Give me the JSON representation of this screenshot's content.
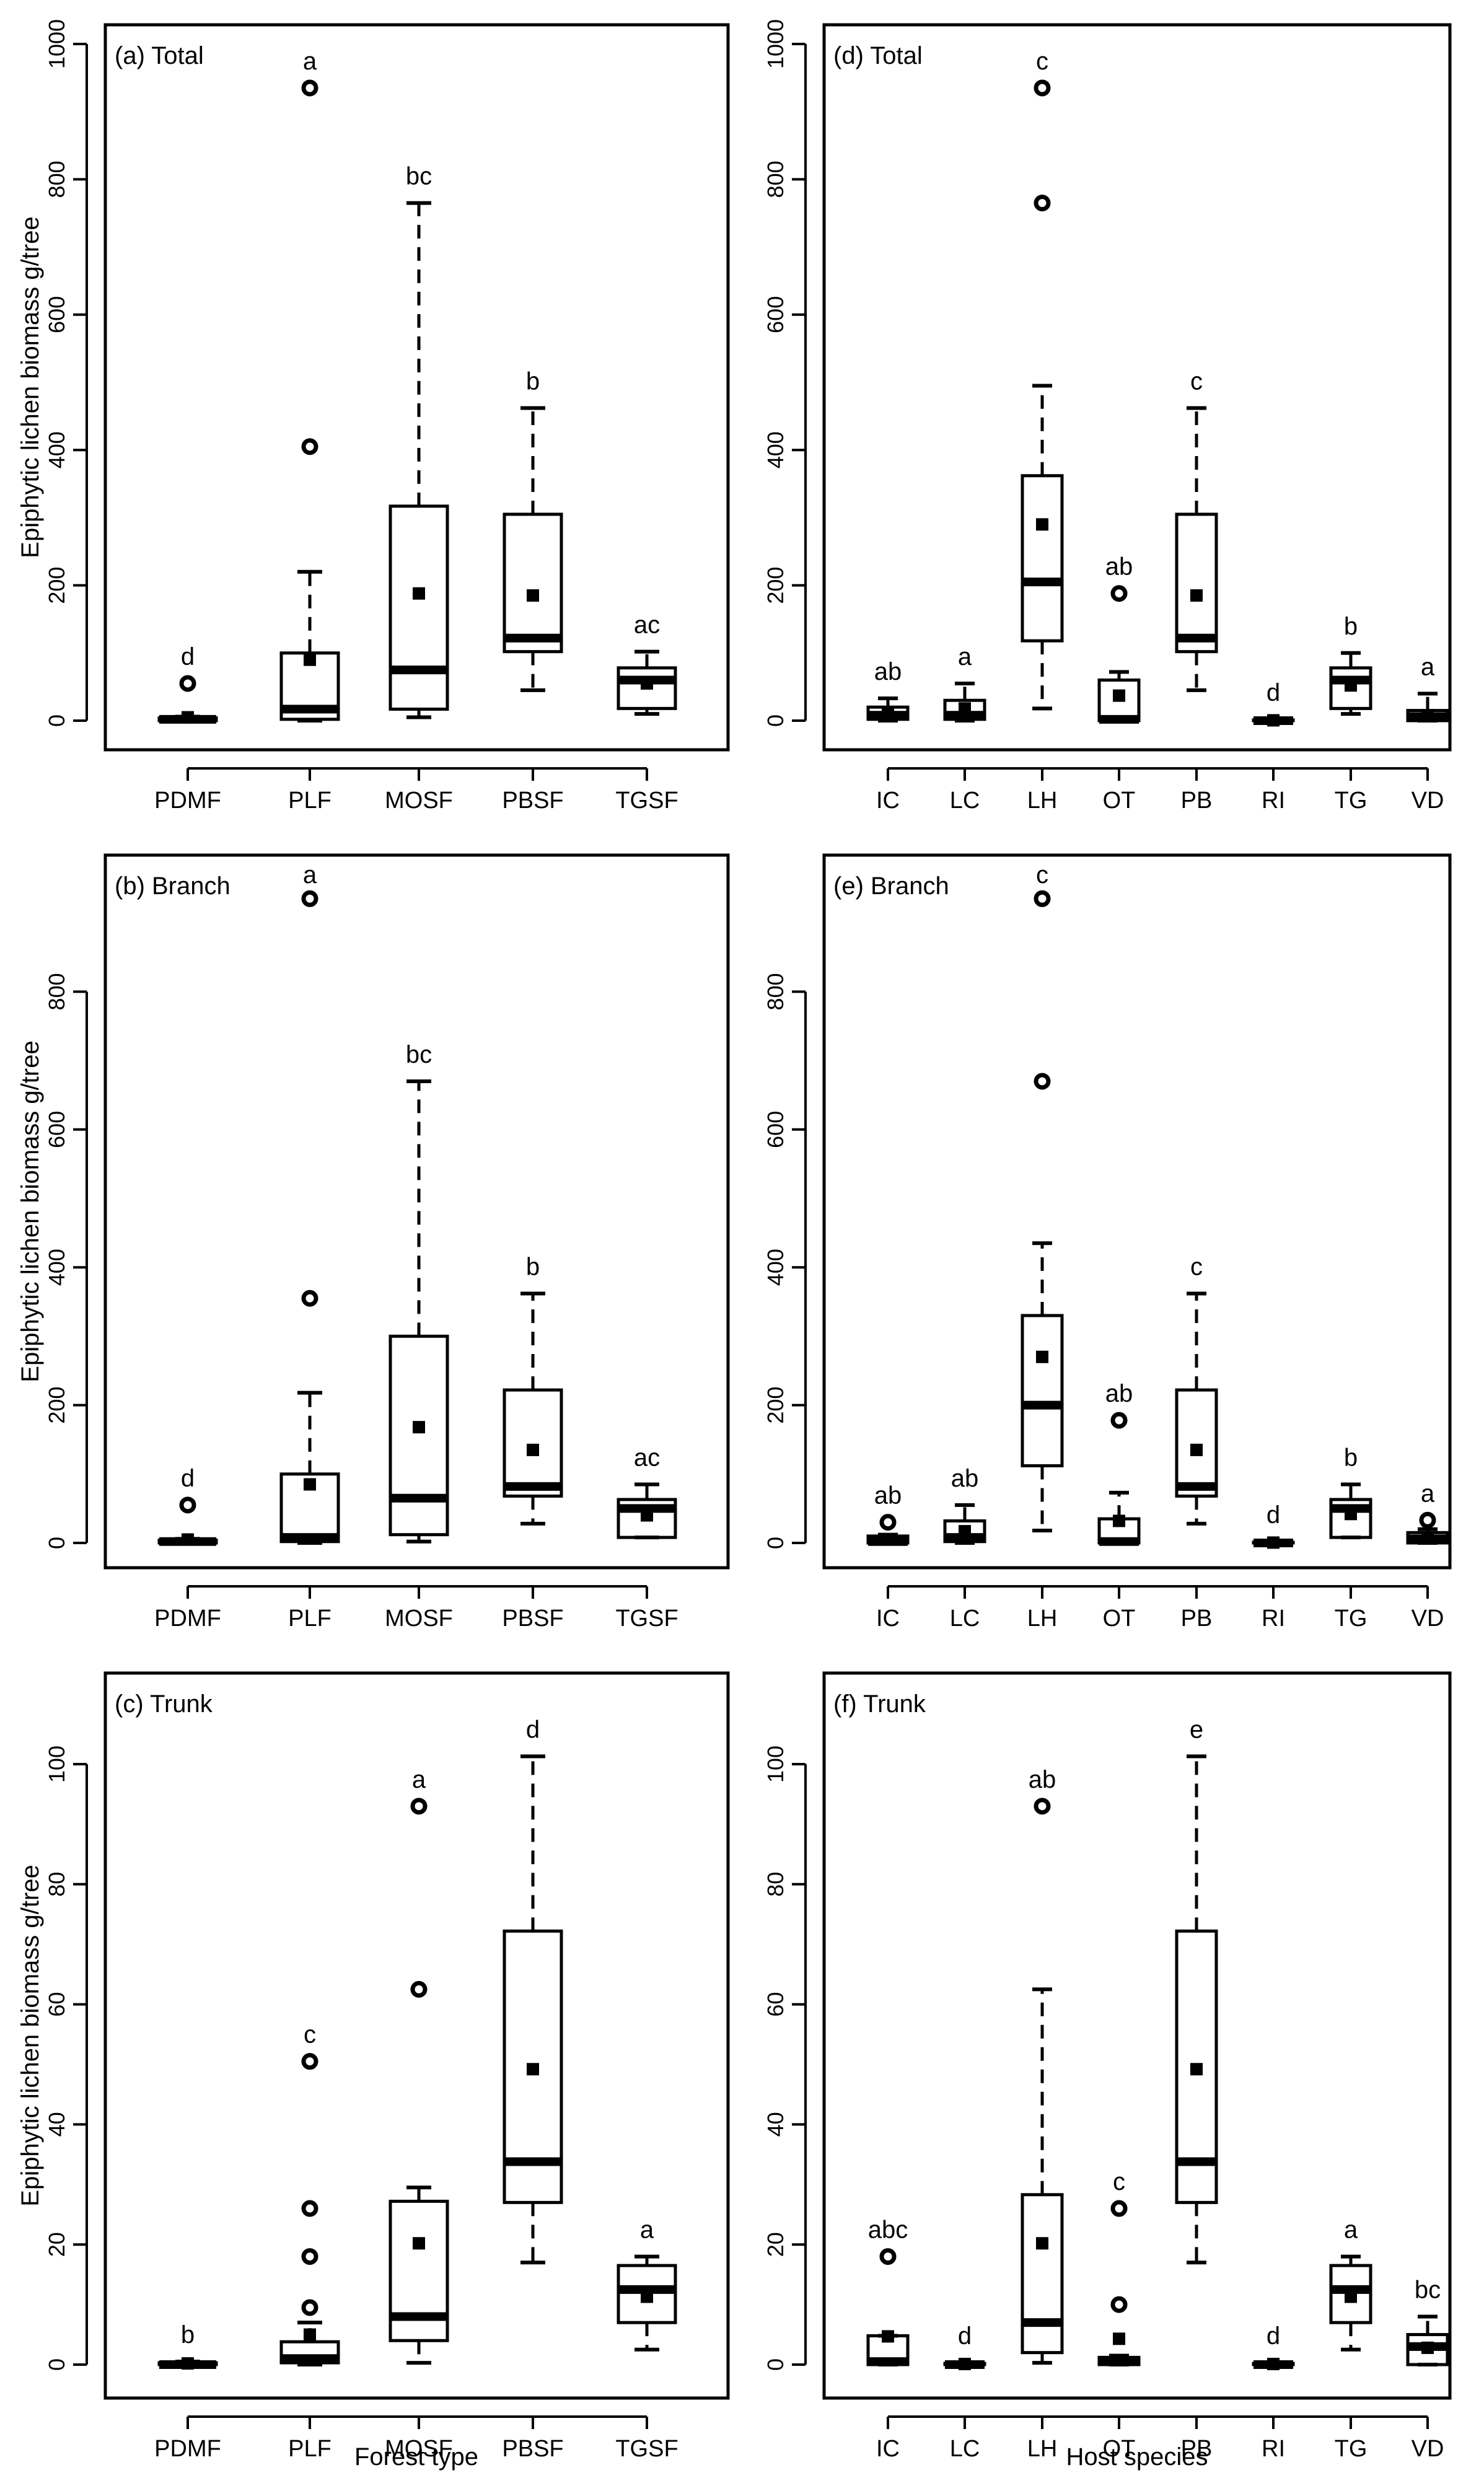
{
  "figure": {
    "ylabel": "Epiphytic lichen biomass g/tree",
    "xlabel_left": "Forest type",
    "xlabel_right": "Host species"
  },
  "chart_data": [
    {
      "type": "boxplot",
      "title": "(a) Total",
      "xlabel": "Forest type",
      "ylabel": "Epiphytic lichen biomass g/tree",
      "ylim": [
        0,
        1000
      ],
      "yticks": [
        0,
        200,
        400,
        600,
        800,
        1000
      ],
      "categories": [
        "PDMF",
        "PLF",
        "MOSF",
        "PBSF",
        "TGSF"
      ],
      "groups": [
        "d",
        "a",
        "bc",
        "b",
        "ac"
      ],
      "boxes": [
        {
          "min": 0,
          "q1": 0,
          "median": 2,
          "q3": 4,
          "max": 6,
          "mean": 5,
          "outliers": [
            55
          ]
        },
        {
          "min": 0,
          "q1": 2,
          "median": 17,
          "q3": 100,
          "max": 220,
          "mean": 90,
          "outliers": [
            405,
            935
          ]
        },
        {
          "min": 5,
          "q1": 17,
          "median": 75,
          "q3": 317,
          "max": 765,
          "mean": 188,
          "outliers": []
        },
        {
          "min": 45,
          "q1": 102,
          "median": 122,
          "q3": 305,
          "max": 462,
          "mean": 185,
          "outliers": []
        },
        {
          "min": 10,
          "q1": 18,
          "median": 60,
          "q3": 78,
          "max": 102,
          "mean": 55,
          "outliers": []
        }
      ]
    },
    {
      "type": "boxplot",
      "title": "(b) Branch",
      "xlabel": "Forest type",
      "ylabel": "Epiphytic lichen biomass g/tree",
      "ylim": [
        0,
        1000
      ],
      "yticks": [
        0,
        200,
        400,
        600,
        800
      ],
      "categories": [
        "PDMF",
        "PLF",
        "MOSF",
        "PBSF",
        "TGSF"
      ],
      "groups": [
        "d",
        "a",
        "bc",
        "b",
        "ac"
      ],
      "boxes": [
        {
          "min": 0,
          "q1": 0,
          "median": 2,
          "q3": 4,
          "max": 6,
          "mean": 5,
          "outliers": [
            55
          ]
        },
        {
          "min": 0,
          "q1": 2,
          "median": 8,
          "q3": 100,
          "max": 218,
          "mean": 85,
          "outliers": [
            355,
            935
          ]
        },
        {
          "min": 2,
          "q1": 12,
          "median": 65,
          "q3": 300,
          "max": 670,
          "mean": 168,
          "outliers": []
        },
        {
          "min": 28,
          "q1": 68,
          "median": 82,
          "q3": 222,
          "max": 362,
          "mean": 135,
          "outliers": []
        },
        {
          "min": 8,
          "q1": 8,
          "median": 50,
          "q3": 63,
          "max": 85,
          "mean": 40,
          "outliers": []
        }
      ]
    },
    {
      "type": "boxplot",
      "title": "(c) Trunk",
      "xlabel": "Forest type",
      "ylabel": "Epiphytic lichen biomass g/tree",
      "ylim": [
        0,
        110
      ],
      "yticks": [
        0,
        20,
        40,
        60,
        80,
        100
      ],
      "categories": [
        "PDMF",
        "PLF",
        "MOSF",
        "PBSF",
        "TGSF"
      ],
      "groups": [
        "b",
        "c",
        "a",
        "d",
        "a"
      ],
      "boxes": [
        {
          "min": 0,
          "q1": 0,
          "median": 0,
          "q3": 0.3,
          "max": 0.5,
          "mean": 0.2,
          "outliers": []
        },
        {
          "min": 0,
          "q1": 0.3,
          "median": 1,
          "q3": 3.8,
          "max": 7,
          "mean": 5,
          "outliers": [
            9.5,
            18,
            26,
            50.5
          ]
        },
        {
          "min": 0.3,
          "q1": 4,
          "median": 8,
          "q3": 27.2,
          "max": 29.5,
          "mean": 20.2,
          "outliers": [
            62.5,
            93
          ]
        },
        {
          "min": 17,
          "q1": 27,
          "median": 33.8,
          "q3": 72.2,
          "max": 101.3,
          "mean": 49.2,
          "outliers": []
        },
        {
          "min": 2.5,
          "q1": 7,
          "median": 12.5,
          "q3": 16.5,
          "max": 18,
          "mean": 11.3,
          "outliers": []
        }
      ]
    },
    {
      "type": "boxplot",
      "title": "(d) Total",
      "xlabel": "Host species",
      "ylabel": "",
      "ylim": [
        0,
        1000
      ],
      "yticks": [
        0,
        200,
        400,
        600,
        800,
        1000
      ],
      "categories": [
        "IC",
        "LC",
        "LH",
        "OT",
        "PB",
        "RI",
        "TG",
        "VD"
      ],
      "groups": [
        "ab",
        "a",
        "c",
        "ab",
        "c",
        "d",
        "b",
        "a"
      ],
      "boxes": [
        {
          "min": 0,
          "q1": 2,
          "median": 8,
          "q3": 20,
          "max": 33,
          "mean": 12,
          "outliers": []
        },
        {
          "min": 0,
          "q1": 2,
          "median": 8,
          "q3": 30,
          "max": 55,
          "mean": 18,
          "outliers": []
        },
        {
          "min": 18,
          "q1": 118,
          "median": 205,
          "q3": 362,
          "max": 495,
          "mean": 290,
          "outliers": [
            765,
            935
          ]
        },
        {
          "min": 0,
          "q1": 0,
          "median": 2,
          "q3": 60,
          "max": 72,
          "mean": 37,
          "outliers": [
            188
          ]
        },
        {
          "min": 45,
          "q1": 102,
          "median": 122,
          "q3": 305,
          "max": 462,
          "mean": 185,
          "outliers": []
        },
        {
          "min": 0,
          "q1": 0,
          "median": 0,
          "q3": 1,
          "max": 2,
          "mean": 0.5,
          "outliers": []
        },
        {
          "min": 10,
          "q1": 18,
          "median": 60,
          "q3": 78,
          "max": 100,
          "mean": 52,
          "outliers": []
        },
        {
          "min": 0,
          "q1": 0,
          "median": 6,
          "q3": 15,
          "max": 40,
          "mean": 8,
          "outliers": []
        }
      ]
    },
    {
      "type": "boxplot",
      "title": "(e) Branch",
      "xlabel": "Host species",
      "ylabel": "",
      "ylim": [
        0,
        1000
      ],
      "yticks": [
        0,
        200,
        400,
        600,
        800
      ],
      "categories": [
        "IC",
        "LC",
        "LH",
        "OT",
        "PB",
        "RI",
        "TG",
        "VD"
      ],
      "groups": [
        "ab",
        "ab",
        "c",
        "ab",
        "c",
        "d",
        "b",
        "a"
      ],
      "boxes": [
        {
          "min": 0,
          "q1": 0,
          "median": 2,
          "q3": 10,
          "max": 12,
          "mean": 5,
          "outliers": [
            30
          ]
        },
        {
          "min": 0,
          "q1": 2,
          "median": 8,
          "q3": 32,
          "max": 55,
          "mean": 17,
          "outliers": []
        },
        {
          "min": 18,
          "q1": 112,
          "median": 200,
          "q3": 330,
          "max": 435,
          "mean": 270,
          "outliers": [
            670,
            935
          ]
        },
        {
          "min": 0,
          "q1": 0,
          "median": 2,
          "q3": 35,
          "max": 73,
          "mean": 32,
          "outliers": [
            178
          ]
        },
        {
          "min": 28,
          "q1": 68,
          "median": 82,
          "q3": 222,
          "max": 362,
          "mean": 135,
          "outliers": []
        },
        {
          "min": 0,
          "q1": 0,
          "median": 0,
          "q3": 1,
          "max": 2,
          "mean": 0.5,
          "outliers": []
        },
        {
          "min": 8,
          "q1": 8,
          "median": 50,
          "q3": 63,
          "max": 85,
          "mean": 42,
          "outliers": []
        },
        {
          "min": 0,
          "q1": 0,
          "median": 6,
          "q3": 15,
          "max": 20,
          "mean": 8,
          "outliers": [
            33
          ]
        }
      ]
    },
    {
      "type": "boxplot",
      "title": "(f) Trunk",
      "xlabel": "Host species",
      "ylabel": "",
      "ylim": [
        0,
        110
      ],
      "yticks": [
        0,
        20,
        40,
        60,
        80,
        100
      ],
      "categories": [
        "IC",
        "LC",
        "LH",
        "OT",
        "PB",
        "RI",
        "TG",
        "VD"
      ],
      "groups": [
        "abc",
        "d",
        "ab",
        "c",
        "e",
        "d",
        "a",
        "bc"
      ],
      "boxes": [
        {
          "min": 0,
          "q1": 0,
          "median": 0.5,
          "q3": 4.8,
          "max": 4.8,
          "mean": 4.7,
          "outliers": [
            18
          ]
        },
        {
          "min": 0,
          "q1": 0,
          "median": 0,
          "q3": 0.2,
          "max": 0.3,
          "mean": 0.1,
          "outliers": []
        },
        {
          "min": 0.3,
          "q1": 2,
          "median": 7,
          "q3": 28.3,
          "max": 62.5,
          "mean": 20.2,
          "outliers": [
            93
          ]
        },
        {
          "min": 0,
          "q1": 0,
          "median": 0.5,
          "q3": 1.2,
          "max": 1.5,
          "mean": 4.3,
          "outliers": [
            10,
            26
          ]
        },
        {
          "min": 17,
          "q1": 27,
          "median": 33.8,
          "q3": 72.2,
          "max": 101.3,
          "mean": 49.2,
          "outliers": []
        },
        {
          "min": 0,
          "q1": 0,
          "median": 0,
          "q3": 0.2,
          "max": 0.3,
          "mean": 0.1,
          "outliers": []
        },
        {
          "min": 2.5,
          "q1": 7,
          "median": 12.5,
          "q3": 16.5,
          "max": 18,
          "mean": 11.3,
          "outliers": []
        },
        {
          "min": 0,
          "q1": 0,
          "median": 3,
          "q3": 5,
          "max": 8,
          "mean": 2.8,
          "outliers": []
        }
      ]
    }
  ]
}
